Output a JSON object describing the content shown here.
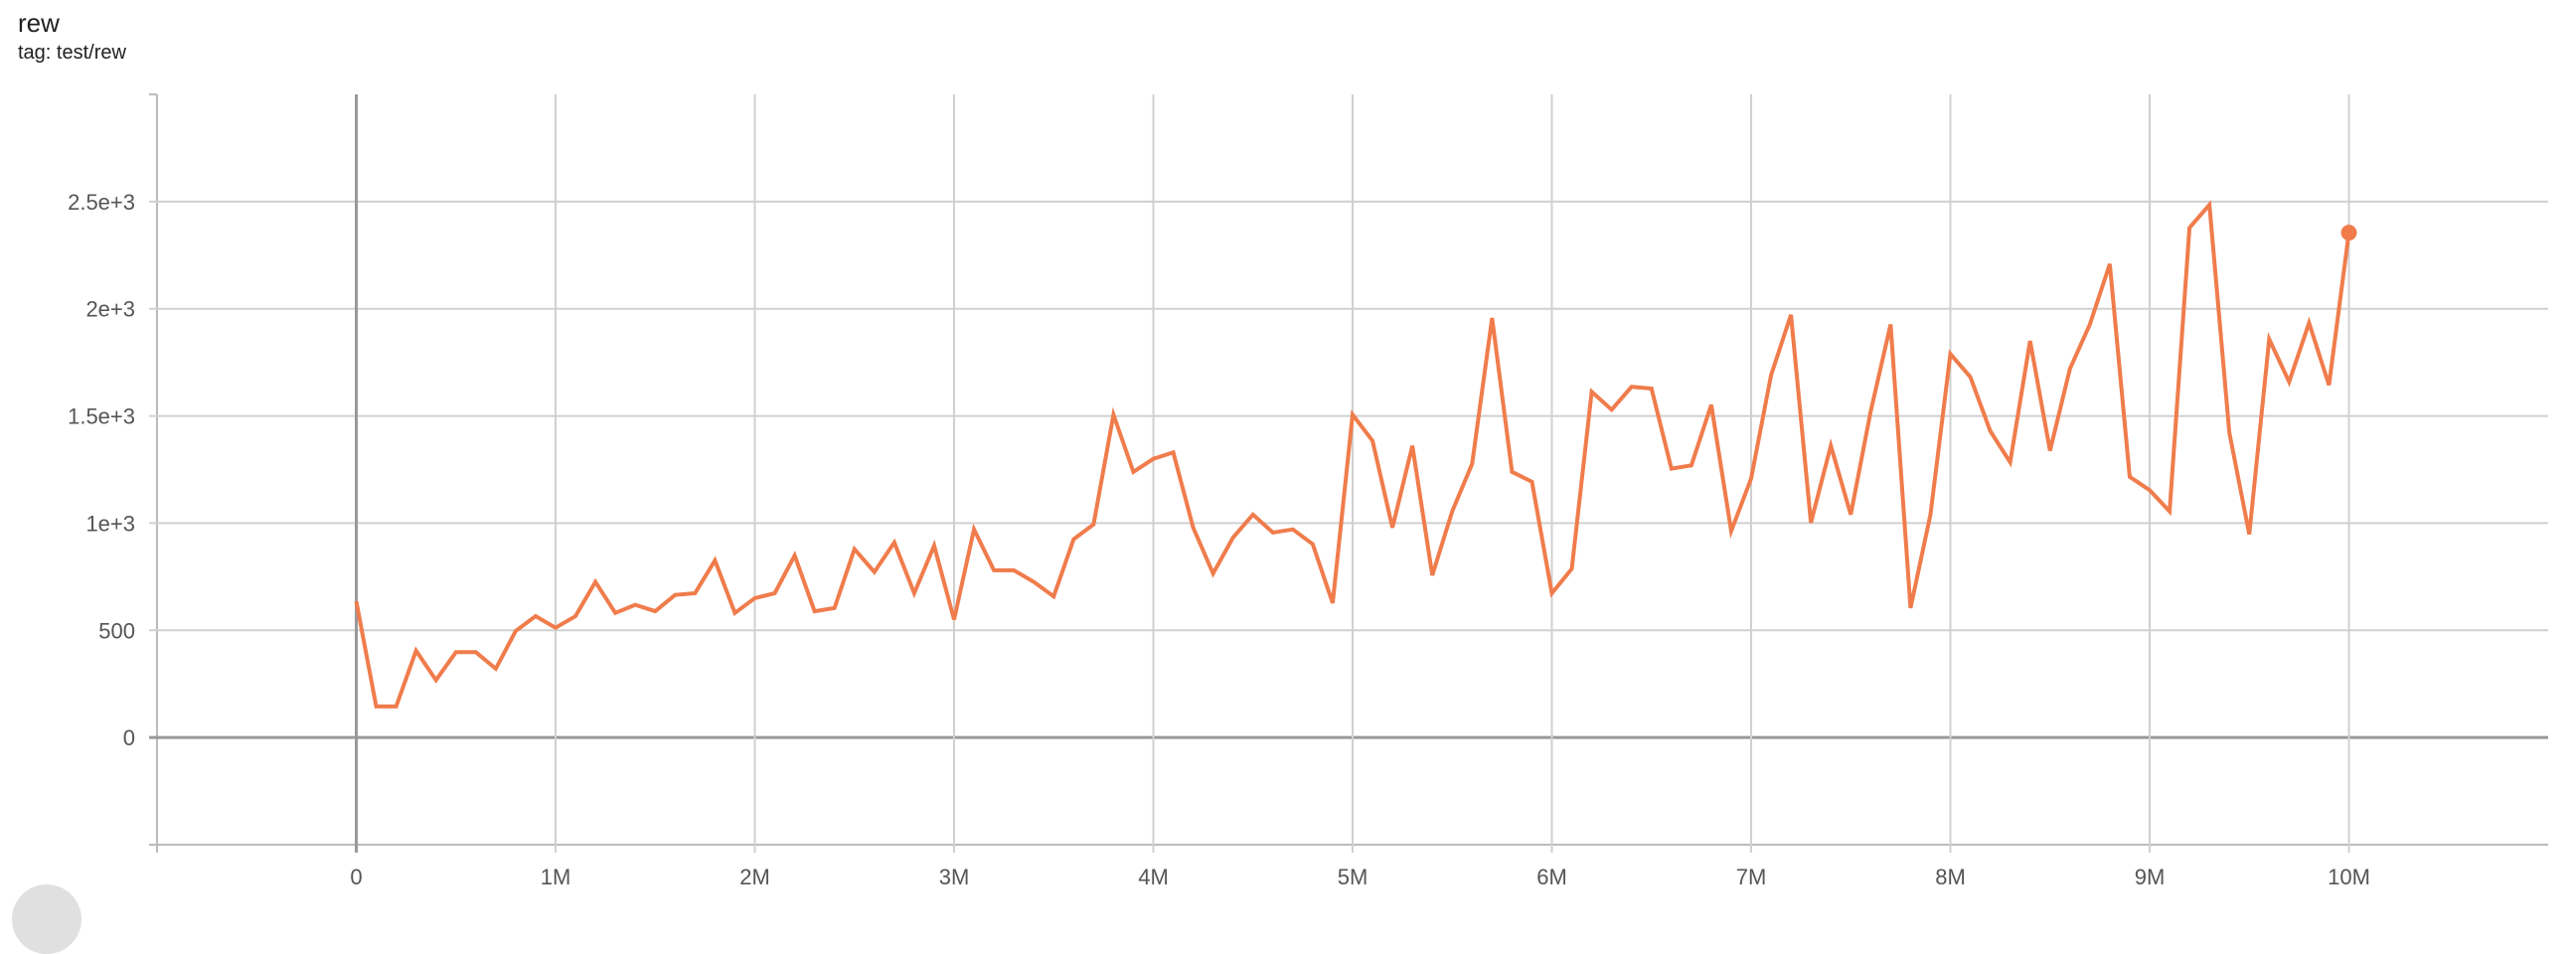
{
  "card": {
    "title": "rew",
    "subtitle": "tag: test/rew"
  },
  "chart_data": {
    "type": "line",
    "title": "rew",
    "subtitle": "tag: test/rew",
    "xlim": [
      -1000000,
      11000000
    ],
    "ylim": [
      -500,
      3000
    ],
    "grid": true,
    "color": "#f07c4c",
    "x_ticks": [
      {
        "v": 0,
        "label": "0"
      },
      {
        "v": 1000000,
        "label": "1M"
      },
      {
        "v": 2000000,
        "label": "2M"
      },
      {
        "v": 3000000,
        "label": "3M"
      },
      {
        "v": 4000000,
        "label": "4M"
      },
      {
        "v": 5000000,
        "label": "5M"
      },
      {
        "v": 6000000,
        "label": "6M"
      },
      {
        "v": 7000000,
        "label": "7M"
      },
      {
        "v": 8000000,
        "label": "8M"
      },
      {
        "v": 9000000,
        "label": "9M"
      },
      {
        "v": 10000000,
        "label": "10M"
      }
    ],
    "y_ticks": [
      {
        "v": 0,
        "label": "0"
      },
      {
        "v": 500,
        "label": "500"
      },
      {
        "v": 1000,
        "label": "1e+3"
      },
      {
        "v": 1500,
        "label": "1.5e+3"
      },
      {
        "v": 2000,
        "label": "2e+3"
      },
      {
        "v": 2500,
        "label": "2.5e+3"
      }
    ],
    "x_step": 100000,
    "values": [
      635,
      145,
      145,
      405,
      268,
      398,
      398,
      321,
      497,
      566,
      512,
      566,
      726,
      581,
      619,
      589,
      665,
      673,
      826,
      581,
      650,
      673,
      849,
      589,
      604,
      879,
      772,
      910,
      673,
      895,
      550,
      971,
      780,
      780,
      726,
      658,
      925,
      994,
      1506,
      1239,
      1300,
      1330,
      979,
      765,
      933,
      1040,
      956,
      971,
      902,
      627,
      1506,
      1384,
      979,
      1361,
      757,
      1055,
      1277,
      1957,
      1239,
      1193,
      673,
      787,
      1613,
      1529,
      1636,
      1628,
      1254,
      1269,
      1552,
      963,
      1208,
      1690,
      1972,
      1002,
      1361,
      1040,
      1521,
      1927,
      604,
      1040,
      1789,
      1682,
      1430,
      1284,
      1850,
      1338,
      1720,
      1927,
      2209,
      1216,
      1154,
      1055,
      2378,
      2485,
      1422,
      948,
      1858,
      1659,
      1934,
      1644,
      2355
    ]
  }
}
